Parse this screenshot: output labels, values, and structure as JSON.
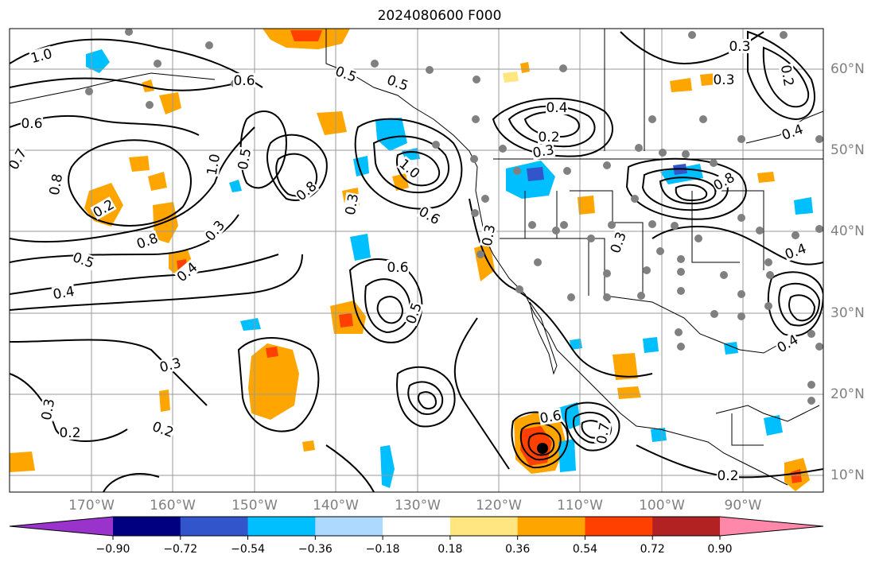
{
  "title": "2024080600 F000",
  "map": {
    "lon_labels": [
      "170°W",
      "160°W",
      "150°W",
      "140°W",
      "130°W",
      "120°W",
      "110°W",
      "100°W",
      "90°W"
    ],
    "lat_labels": [
      "60°N",
      "50°N",
      "40°N",
      "30°N",
      "20°N",
      "10°N"
    ],
    "contour_labels": [
      "1.0",
      "0.6",
      "0.7",
      "0.8",
      "0.2",
      "0.8",
      "0.5",
      "0.4",
      "0.6",
      "0.5",
      "1.0",
      "0.8",
      "0.3",
      "0.5",
      "0.3",
      "1.0",
      "0.6",
      "0.3",
      "0.6",
      "0.5",
      "0.4",
      "0.2",
      "0.3",
      "0.3",
      "0.8",
      "0.2",
      "0.4",
      "0.6",
      "0.7",
      "0.3",
      "0.2",
      "0.2",
      "0.3",
      "0.4",
      "0.2",
      "0.3",
      "0.4",
      "0.5",
      "0.3",
      "0.4"
    ]
  },
  "colorbar": {
    "colors": [
      "#9933cc",
      "#000080",
      "#3355cc",
      "#00bfff",
      "#add8ff",
      "#ffffff",
      "#ffe680",
      "#ffa500",
      "#ff4000",
      "#b22222",
      "#ff88aa"
    ],
    "tick_labels": [
      "−0.90",
      "−0.72",
      "−0.54",
      "−0.36",
      "−0.18",
      "0.18",
      "0.36",
      "0.54",
      "0.72",
      "0.90"
    ]
  },
  "colors": {
    "station_dot": "#808080",
    "contour": "#000000",
    "grid": "#999999"
  }
}
